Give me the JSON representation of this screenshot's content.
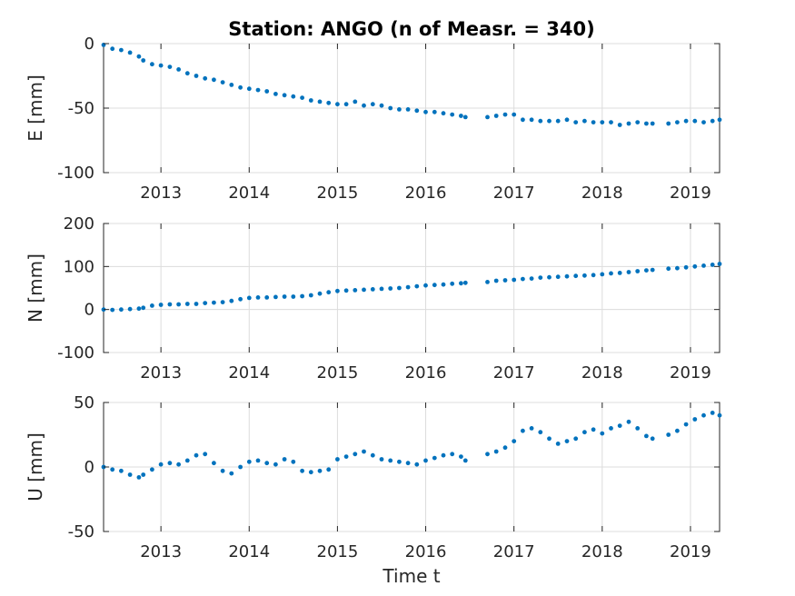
{
  "chart_data": {
    "title": "Station: ANGO (n of Measr. = 340)",
    "type": "scatter",
    "color": "#0072bd",
    "xlim": [
      2012.35,
      2019.33
    ],
    "x_ticks": [
      2013,
      2014,
      2015,
      2016,
      2017,
      2018,
      2019
    ],
    "x_tick_labels": [
      "2013",
      "2014",
      "2015",
      "2016",
      "2017",
      "2018",
      "2019"
    ],
    "xlabel": "Time t",
    "grid": true,
    "panels": [
      {
        "name": "E",
        "ylabel": "E [mm]",
        "ylim": [
          -100,
          0
        ],
        "y_ticks": [
          -100,
          -50,
          0
        ],
        "y_tick_labels": [
          "-100",
          "-50",
          "0"
        ],
        "series": [
          {
            "x": [
              2012.35,
              2012.45,
              2012.55,
              2012.65,
              2012.75,
              2012.8,
              2012.9,
              2013.0,
              2013.1,
              2013.2,
              2013.3,
              2013.4,
              2013.5,
              2013.6,
              2013.7,
              2013.8,
              2013.9,
              2014.0,
              2014.1,
              2014.2,
              2014.3,
              2014.4,
              2014.5,
              2014.6,
              2014.7,
              2014.8,
              2014.9,
              2015.0,
              2015.1,
              2015.2,
              2015.3,
              2015.4,
              2015.5,
              2015.6,
              2015.7,
              2015.8,
              2015.9,
              2016.0,
              2016.1,
              2016.2,
              2016.3,
              2016.4,
              2016.45,
              2016.7,
              2016.8,
              2016.9,
              2017.0,
              2017.1,
              2017.2,
              2017.3,
              2017.4,
              2017.5,
              2017.6,
              2017.7,
              2017.8,
              2017.9,
              2018.0,
              2018.1,
              2018.2,
              2018.3,
              2018.4,
              2018.5,
              2018.57,
              2018.75,
              2018.85,
              2018.95,
              2019.05,
              2019.15,
              2019.25,
              2019.33
            ],
            "y": [
              -1,
              -4,
              -5,
              -7,
              -10,
              -13,
              -16,
              -17,
              -18,
              -20,
              -23,
              -25,
              -27,
              -28,
              -30,
              -32,
              -34,
              -35,
              -36,
              -37,
              -39,
              -40,
              -41,
              -42,
              -44,
              -45,
              -46,
              -47,
              -47,
              -45,
              -48,
              -47,
              -48,
              -50,
              -51,
              -51,
              -52,
              -53,
              -53,
              -54,
              -55,
              -56,
              -57,
              -57,
              -56,
              -55,
              -55,
              -59,
              -59,
              -60,
              -60,
              -60,
              -59,
              -61,
              -60,
              -61,
              -61,
              -61,
              -63,
              -62,
              -61,
              -62,
              -62,
              -62,
              -61,
              -60,
              -60,
              -61,
              -60,
              -59
            ]
          }
        ]
      },
      {
        "name": "N",
        "ylabel": "N [mm]",
        "ylim": [
          -100,
          200
        ],
        "y_ticks": [
          -100,
          0,
          100,
          200
        ],
        "y_tick_labels": [
          "-100",
          "0",
          "100",
          "200"
        ],
        "series": [
          {
            "x": [
              2012.35,
              2012.45,
              2012.55,
              2012.65,
              2012.75,
              2012.8,
              2012.9,
              2013.0,
              2013.1,
              2013.2,
              2013.3,
              2013.4,
              2013.5,
              2013.6,
              2013.7,
              2013.8,
              2013.9,
              2014.0,
              2014.1,
              2014.2,
              2014.3,
              2014.4,
              2014.5,
              2014.6,
              2014.7,
              2014.8,
              2014.9,
              2015.0,
              2015.1,
              2015.2,
              2015.3,
              2015.4,
              2015.5,
              2015.6,
              2015.7,
              2015.8,
              2015.9,
              2016.0,
              2016.1,
              2016.2,
              2016.3,
              2016.4,
              2016.45,
              2016.7,
              2016.8,
              2016.9,
              2017.0,
              2017.1,
              2017.2,
              2017.3,
              2017.4,
              2017.5,
              2017.6,
              2017.7,
              2017.8,
              2017.9,
              2018.0,
              2018.1,
              2018.2,
              2018.3,
              2018.4,
              2018.5,
              2018.57,
              2018.75,
              2018.85,
              2018.95,
              2019.05,
              2019.15,
              2019.25,
              2019.33
            ],
            "y": [
              0,
              -1,
              0,
              1,
              2,
              4,
              9,
              11,
              12,
              12,
              13,
              13,
              15,
              16,
              17,
              20,
              24,
              27,
              28,
              28,
              29,
              30,
              30,
              31,
              33,
              37,
              40,
              43,
              44,
              45,
              46,
              47,
              48,
              49,
              50,
              52,
              54,
              56,
              57,
              58,
              60,
              61,
              62,
              64,
              67,
              68,
              69,
              71,
              72,
              74,
              75,
              76,
              77,
              78,
              79,
              80,
              82,
              84,
              85,
              87,
              89,
              91,
              92,
              95,
              96,
              98,
              100,
              102,
              104,
              106
            ]
          }
        ]
      },
      {
        "name": "U",
        "ylabel": "U [mm]",
        "ylim": [
          -50,
          50
        ],
        "y_ticks": [
          -50,
          0,
          50
        ],
        "y_tick_labels": [
          "-50",
          "0",
          "50"
        ],
        "series": [
          {
            "x": [
              2012.35,
              2012.45,
              2012.55,
              2012.65,
              2012.75,
              2012.8,
              2012.9,
              2013.0,
              2013.1,
              2013.2,
              2013.3,
              2013.4,
              2013.5,
              2013.6,
              2013.7,
              2013.8,
              2013.9,
              2014.0,
              2014.1,
              2014.2,
              2014.3,
              2014.4,
              2014.5,
              2014.6,
              2014.7,
              2014.8,
              2014.9,
              2015.0,
              2015.1,
              2015.2,
              2015.3,
              2015.4,
              2015.5,
              2015.6,
              2015.7,
              2015.8,
              2015.9,
              2016.0,
              2016.1,
              2016.2,
              2016.3,
              2016.4,
              2016.45,
              2016.7,
              2016.8,
              2016.9,
              2017.0,
              2017.1,
              2017.2,
              2017.3,
              2017.4,
              2017.5,
              2017.6,
              2017.7,
              2017.8,
              2017.9,
              2018.0,
              2018.1,
              2018.2,
              2018.3,
              2018.4,
              2018.5,
              2018.57,
              2018.75,
              2018.85,
              2018.95,
              2019.05,
              2019.15,
              2019.25,
              2019.33
            ],
            "y": [
              0,
              -2,
              -3,
              -6,
              -8,
              -6,
              -2,
              2,
              3,
              2,
              5,
              9,
              10,
              3,
              -3,
              -5,
              0,
              4,
              5,
              3,
              2,
              6,
              4,
              -3,
              -4,
              -3,
              -2,
              6,
              8,
              10,
              12,
              9,
              6,
              5,
              4,
              3,
              2,
              5,
              7,
              9,
              10,
              8,
              5,
              10,
              12,
              15,
              20,
              28,
              30,
              27,
              22,
              18,
              20,
              22,
              27,
              29,
              26,
              30,
              32,
              35,
              30,
              24,
              22,
              25,
              28,
              33,
              37,
              40,
              42,
              40
            ]
          }
        ]
      }
    ]
  }
}
